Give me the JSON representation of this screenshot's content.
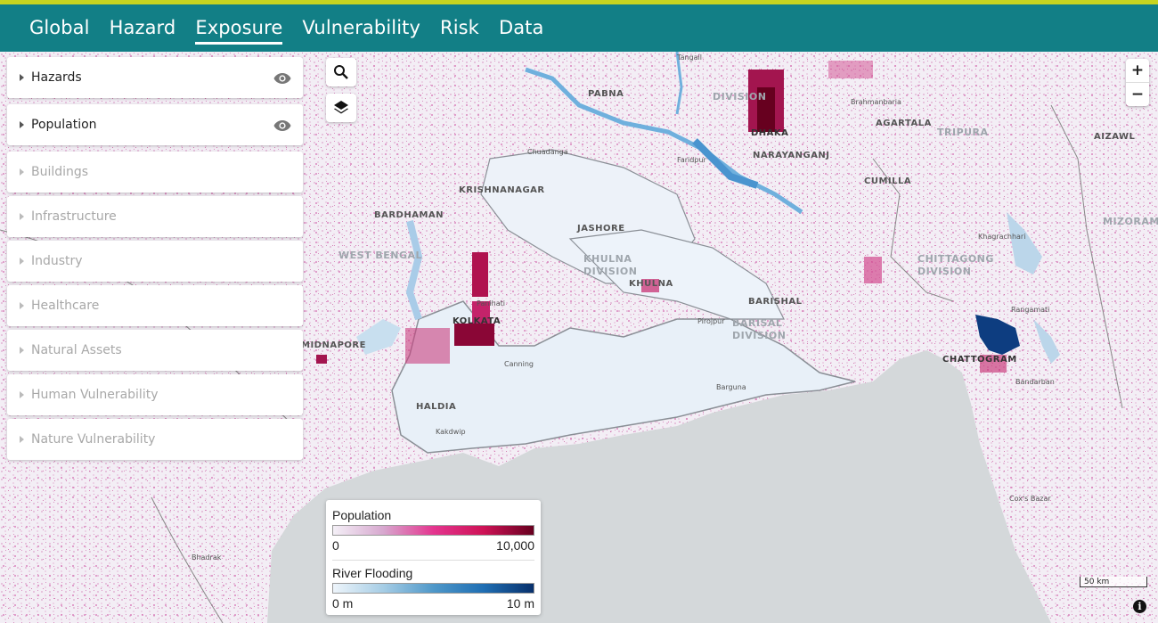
{
  "nav": {
    "items": [
      "Global",
      "Hazard",
      "Exposure",
      "Vulnerability",
      "Risk",
      "Data"
    ],
    "active": "Exposure"
  },
  "panel": {
    "main_items": [
      {
        "label": "Hazards",
        "icon": "eye-icon"
      },
      {
        "label": "Population",
        "icon": "eye-icon"
      }
    ],
    "sub_items": [
      "Buildings",
      "Infrastructure",
      "Industry",
      "Healthcare",
      "Natural Assets",
      "Human Vulnerability",
      "Nature Vulnerability"
    ]
  },
  "map_labels": {
    "pabna": "PABNA",
    "dhaka": "DHAKA",
    "dhaka_division": "DIVISION",
    "narayanganj": "NARAYANGANJ",
    "brahmanbaria": "Brahmanbaria",
    "agartala": "AGARTALA",
    "tripura": "TRIPURA",
    "aizawl": "AIZAWL",
    "tangail": "Tangail",
    "chuadanga": "Chuadanga",
    "faridpur": "Faridpur",
    "krishnanagar": "KRISHNANAGAR",
    "cumilla": "CUMILLA",
    "mizoram": "MIZORAM",
    "bardhaman": "BARDHAMAN",
    "jashore": "JASHORE",
    "khagrachhari": "Khagrachhari",
    "west_bengal": "WEST BENGAL",
    "khulna_division": "KHULNA DIVISION",
    "chittagong_division": "CHITTAGONG DIVISION",
    "khulna": "KHULNA",
    "barishal": "BARISHAL",
    "panihati": "Panihati",
    "kolkata": "KOLKATA",
    "rangamati": "Rangamati",
    "midnapore": "MIDNAPORE",
    "pirojpur": "Pirojpur",
    "barisal_division": "BARISAL DIVISION",
    "chattogram": "CHATTOGRAM",
    "canning": "Canning",
    "barguna": "Barguna",
    "bandarban": "Bandarban",
    "haldia": "HALDIA",
    "kakdwip": "Kakdwip",
    "coxs_bazar": "Cox's Bazar",
    "bhadrak": "Bhadrak"
  },
  "legend": {
    "population": {
      "title": "Population",
      "min": "0",
      "max": "10,000"
    },
    "flooding": {
      "title": "River Flooding",
      "min": "0 m",
      "max": "10 m"
    }
  },
  "controls": {
    "zoom_in": "+",
    "zoom_out": "−",
    "scale": "50 km",
    "info": "i"
  },
  "colors": {
    "nav_bg": "#127f86",
    "nav_accent": "#c7d41f",
    "sea": "#d4d8da",
    "population_high": "#67001f",
    "flood_high": "#08306b"
  }
}
